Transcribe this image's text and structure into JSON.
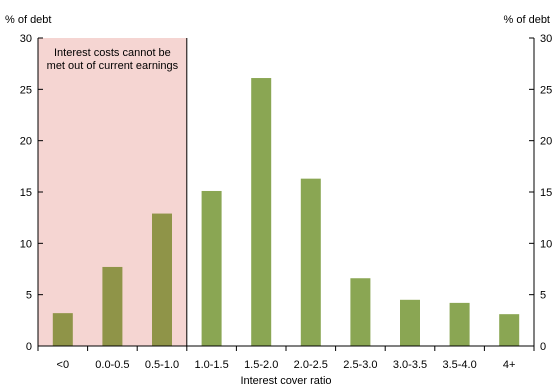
{
  "chart_data": {
    "type": "bar",
    "categories": [
      "<0",
      "0.0-0.5",
      "0.5-1.0",
      "1.0-1.5",
      "1.5-2.0",
      "2.0-2.5",
      "2.5-3.0",
      "3.0-3.5",
      "3.5-4.0",
      "4+"
    ],
    "values": [
      3.2,
      7.7,
      12.9,
      15.1,
      26.1,
      16.3,
      6.6,
      4.5,
      4.2,
      3.1
    ],
    "xlabel": "Interest cover ratio",
    "ylabel_left": "% of debt",
    "ylabel_right": "% of debt",
    "ylim": [
      0,
      30
    ],
    "yticks": [
      0,
      5,
      10,
      15,
      20,
      25,
      30
    ],
    "grid": false,
    "shaded_region": {
      "from_category": "<0",
      "to_category": "0.5-1.0",
      "label_lines": [
        "Interest costs cannot be",
        "met out of current earnings"
      ],
      "fill_color": "#f5d5d2"
    },
    "colors": {
      "bar_shaded": "#8f9448",
      "bar": "#8aa653"
    }
  }
}
